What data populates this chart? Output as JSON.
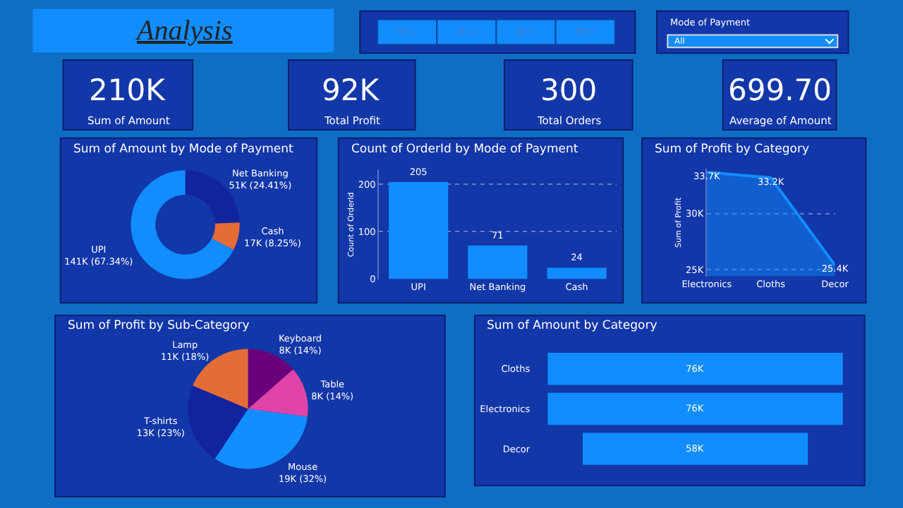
{
  "chart_data": [
    {
      "type": "other",
      "title": "Analysis"
    },
    {
      "type": "other",
      "categories": [
        "Qtr 1",
        "Qtr 2",
        "Qtr 3",
        "Qtr 4"
      ]
    },
    {
      "type": "other",
      "title": "Mode of Payment",
      "annotations": [
        "All"
      ]
    },
    {
      "type": "other",
      "categories": [
        "Sum of Amount",
        "Total Profit",
        "Total Orders",
        "Average of Amount"
      ],
      "values": [
        210000,
        92000,
        300,
        699.7
      ],
      "value_labels": [
        "210K",
        "92K",
        "300",
        "699.70"
      ]
    },
    {
      "type": "donut",
      "title": "Sum of Amount by Mode of Payment",
      "categories": [
        "Net Banking",
        "Cash",
        "UPI"
      ],
      "values": [
        24.41,
        8.25,
        67.34
      ],
      "value_labels": [
        "51K (24.41%)",
        "17K (8.25%)",
        "141K (67.34%)"
      ],
      "colors": [
        "#12239e",
        "#e66c37",
        "#118dff"
      ]
    },
    {
      "type": "bar",
      "title": "Count of OrderId by Mode of Payment",
      "categories": [
        "UPI",
        "Net Banking",
        "Cash"
      ],
      "values": [
        205,
        71,
        24
      ],
      "color": "#118dff",
      "ylabel": "Count of OrderId",
      "ylim": [
        0,
        230
      ],
      "yticks": [
        0,
        100,
        200
      ],
      "grid": "y",
      "data_labels": true
    },
    {
      "type": "area",
      "title": "Sum of Profit by Category",
      "categories": [
        "Electronics",
        "Cloths",
        "Decor"
      ],
      "values": [
        33700,
        33200,
        25400
      ],
      "value_labels": [
        "33.7K",
        "33.2K",
        "25.4K"
      ],
      "color": "#118dff",
      "ylabel": "Sum of Profit",
      "ylim": [
        24400,
        34000
      ],
      "yticks": [
        {
          "value": 25000,
          "label": "25K"
        },
        {
          "value": 30000,
          "label": "30K"
        }
      ],
      "grid": "y"
    },
    {
      "type": "pie",
      "title": "Sum of Profit by Sub-Category",
      "categories": [
        "Keyboard",
        "Table",
        "Mouse",
        "T-shirts",
        "Lamp"
      ],
      "values": [
        8000,
        8000,
        19000,
        13000,
        11000
      ],
      "value_labels": [
        "8K (14%)",
        "8K (14%)",
        "19K (32%)",
        "13K (23%)",
        "11K (18%)"
      ],
      "colors": [
        "#6b007b",
        "#e044a7",
        "#118dff",
        "#12239e",
        "#e66c37"
      ]
    },
    {
      "type": "other",
      "title": "Sum of Amount by Category",
      "categories": [
        "Cloths",
        "Electronics",
        "Decor"
      ],
      "values": [
        76000,
        76000,
        58000
      ],
      "value_labels": [
        "76K",
        "76K",
        "58K"
      ],
      "color": "#118dff"
    }
  ]
}
